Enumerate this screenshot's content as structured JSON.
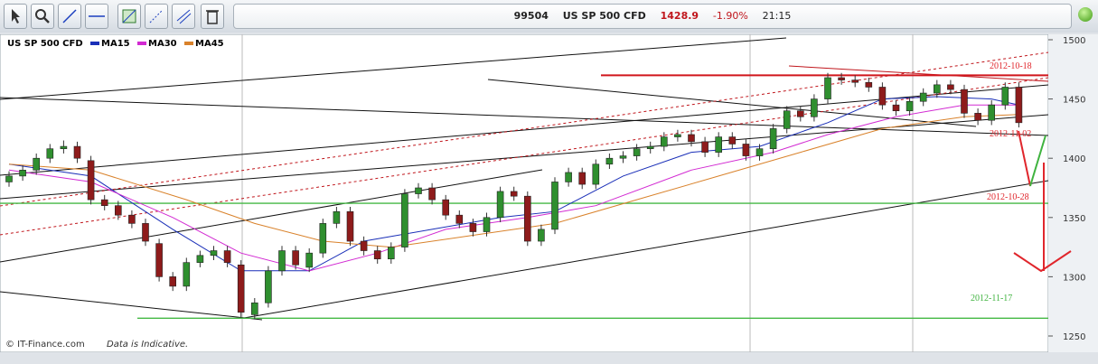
{
  "header": {
    "code": "99504",
    "symbol": "US SP 500 CFD",
    "price": "1428.9",
    "change": "-1.90%",
    "time": "21:15"
  },
  "footer": {
    "credit": "© IT-Finance.com",
    "note": "Data is Indicative."
  },
  "chart_data": {
    "type": "candlestick",
    "symbol": "US SP 500 CFD",
    "up_color": "#2f8f2f",
    "down_color": "#8e1b1b",
    "ylim": [
      1250,
      1500
    ],
    "yticks": [
      1250,
      1300,
      1350,
      1400,
      1450,
      1500
    ],
    "open": [
      1380,
      1385,
      1390,
      1400,
      1408,
      1410,
      1398,
      1365,
      1360,
      1352,
      1345,
      1328,
      1300,
      1292,
      1312,
      1318,
      1322,
      1310,
      1268,
      1278,
      1305,
      1322,
      1308,
      1320,
      1345,
      1355,
      1330,
      1322,
      1315,
      1325,
      1370,
      1375,
      1365,
      1352,
      1345,
      1338,
      1350,
      1372,
      1368,
      1330,
      1340,
      1380,
      1388,
      1378,
      1395,
      1400,
      1402,
      1408,
      1410,
      1418,
      1420,
      1414,
      1405,
      1418,
      1412,
      1402,
      1408,
      1425,
      1440,
      1435,
      1450,
      1468,
      1466,
      1464,
      1460,
      1445,
      1440,
      1448,
      1455,
      1462,
      1458,
      1438,
      1432,
      1445,
      1460
    ],
    "high": [
      1389,
      1394,
      1404,
      1412,
      1415,
      1414,
      1402,
      1369,
      1364,
      1356,
      1349,
      1332,
      1304,
      1316,
      1322,
      1326,
      1326,
      1314,
      1282,
      1309,
      1326,
      1326,
      1324,
      1349,
      1359,
      1359,
      1334,
      1326,
      1329,
      1374,
      1379,
      1379,
      1369,
      1356,
      1349,
      1354,
      1376,
      1376,
      1372,
      1344,
      1384,
      1392,
      1392,
      1399,
      1404,
      1406,
      1412,
      1414,
      1422,
      1424,
      1424,
      1418,
      1422,
      1422,
      1416,
      1412,
      1429,
      1444,
      1444,
      1454,
      1472,
      1472,
      1470,
      1468,
      1464,
      1449,
      1452,
      1459,
      1466,
      1466,
      1462,
      1442,
      1449,
      1464,
      1464
    ],
    "low": [
      1376,
      1381,
      1386,
      1396,
      1404,
      1396,
      1361,
      1356,
      1348,
      1341,
      1326,
      1296,
      1288,
      1288,
      1308,
      1314,
      1308,
      1266,
      1264,
      1274,
      1301,
      1306,
      1304,
      1316,
      1341,
      1326,
      1318,
      1311,
      1311,
      1321,
      1366,
      1361,
      1348,
      1341,
      1334,
      1334,
      1346,
      1364,
      1326,
      1326,
      1336,
      1376,
      1374,
      1374,
      1391,
      1396,
      1398,
      1404,
      1406,
      1414,
      1410,
      1401,
      1401,
      1408,
      1398,
      1398,
      1404,
      1421,
      1431,
      1431,
      1446,
      1462,
      1460,
      1456,
      1441,
      1436,
      1436,
      1444,
      1451,
      1454,
      1434,
      1428,
      1428,
      1441,
      1426
    ],
    "close": [
      1385,
      1390,
      1400,
      1408,
      1410,
      1400,
      1365,
      1360,
      1352,
      1345,
      1330,
      1300,
      1292,
      1312,
      1318,
      1322,
      1312,
      1270,
      1278,
      1305,
      1322,
      1310,
      1320,
      1345,
      1355,
      1330,
      1322,
      1315,
      1325,
      1370,
      1375,
      1365,
      1352,
      1345,
      1338,
      1350,
      1372,
      1368,
      1330,
      1340,
      1380,
      1388,
      1378,
      1395,
      1400,
      1402,
      1408,
      1410,
      1418,
      1420,
      1414,
      1405,
      1418,
      1412,
      1402,
      1408,
      1425,
      1440,
      1435,
      1450,
      1468,
      1466,
      1464,
      1460,
      1445,
      1440,
      1448,
      1455,
      1462,
      1458,
      1438,
      1432,
      1445,
      1460,
      1430
    ],
    "series": [
      {
        "name": "MA15",
        "color": "#1a2fb8",
        "x": [
          0,
          6,
          12,
          17,
          22,
          26,
          31,
          36,
          40,
          45,
          50,
          55,
          60,
          64,
          68,
          72,
          74
        ],
        "values": [
          1395,
          1385,
          1340,
          1305,
          1305,
          1330,
          1340,
          1350,
          1355,
          1385,
          1405,
          1410,
          1430,
          1450,
          1452,
          1450,
          1445
        ]
      },
      {
        "name": "MA30",
        "color": "#d22ad2",
        "x": [
          0,
          6,
          12,
          17,
          22,
          27,
          32,
          38,
          43,
          50,
          56,
          60,
          65,
          70,
          74
        ],
        "values": [
          1390,
          1380,
          1350,
          1320,
          1305,
          1320,
          1340,
          1350,
          1360,
          1390,
          1405,
          1420,
          1435,
          1445,
          1445
        ]
      },
      {
        "name": "MA45",
        "color": "#d9822b",
        "x": [
          0,
          6,
          13,
          18,
          23,
          28,
          34,
          40,
          46,
          52,
          58,
          64,
          70,
          74
        ],
        "values": [
          1395,
          1390,
          1365,
          1345,
          1330,
          1325,
          1335,
          1345,
          1365,
          1385,
          1405,
          1425,
          1435,
          1437
        ]
      }
    ],
    "hlines": [
      {
        "value": 1470,
        "color": "#d0161c"
      },
      {
        "value": 1362,
        "color": "#44b944"
      },
      {
        "value": 1265,
        "color": "#44b944"
      }
    ],
    "annotations": [
      {
        "text": "2012-10-18",
        "color": "#e0262c"
      },
      {
        "text": "2012-11-02",
        "color": "#e0262c"
      },
      {
        "text": "2012-10-28",
        "color": "#e0262c"
      },
      {
        "text": "2012-11-17",
        "color": "#3fb33f"
      }
    ]
  }
}
